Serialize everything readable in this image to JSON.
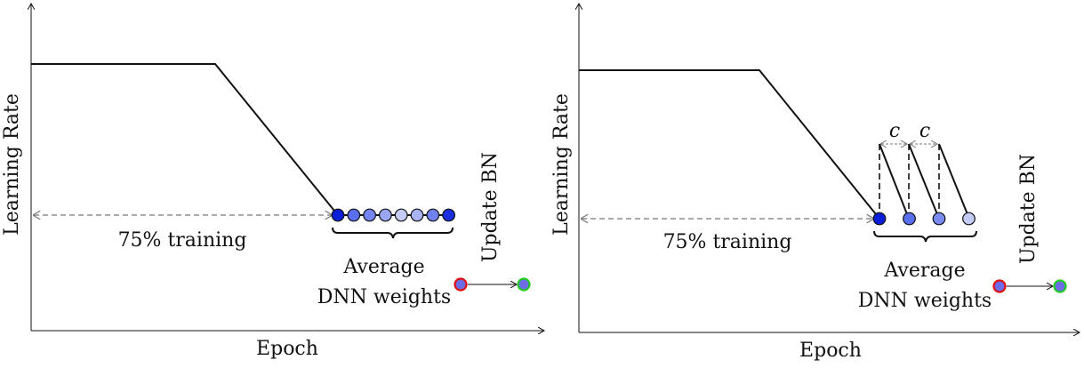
{
  "panels": [
    {
      "ylabel": "Learning Rate",
      "xlabel": "Epoch",
      "arrow_text": "75% training",
      "average_line1": "Average",
      "average_line2": "DNN weights",
      "update_label": "Update BN",
      "dot_colors": [
        "#0a1ed8",
        "#5a6ef0",
        "#7484f0",
        "#9aa6f2",
        "#c4cbf6",
        "#a8b2f4",
        "#7080ee",
        "#1a2ee0"
      ]
    },
    {
      "ylabel": "Learning Rate",
      "xlabel": "Epoch",
      "arrow_text": "75% training",
      "average_line1": "Average",
      "average_line2": "DNN weights",
      "update_label": "Update BN",
      "cycle_label_1": "c",
      "cycle_label_2": "c",
      "dot_colors": [
        "#0a1ed8",
        "#5a6ef0",
        "#7a8af0",
        "#c4cbf6"
      ]
    }
  ],
  "colors": {
    "line": "#111111",
    "dashed": "#777777",
    "bn_before_fill": "#6c6ce6",
    "bn_before_ring": "#e01010",
    "bn_after_fill": "#6c6ce6",
    "bn_after_ring": "#22cc22"
  }
}
